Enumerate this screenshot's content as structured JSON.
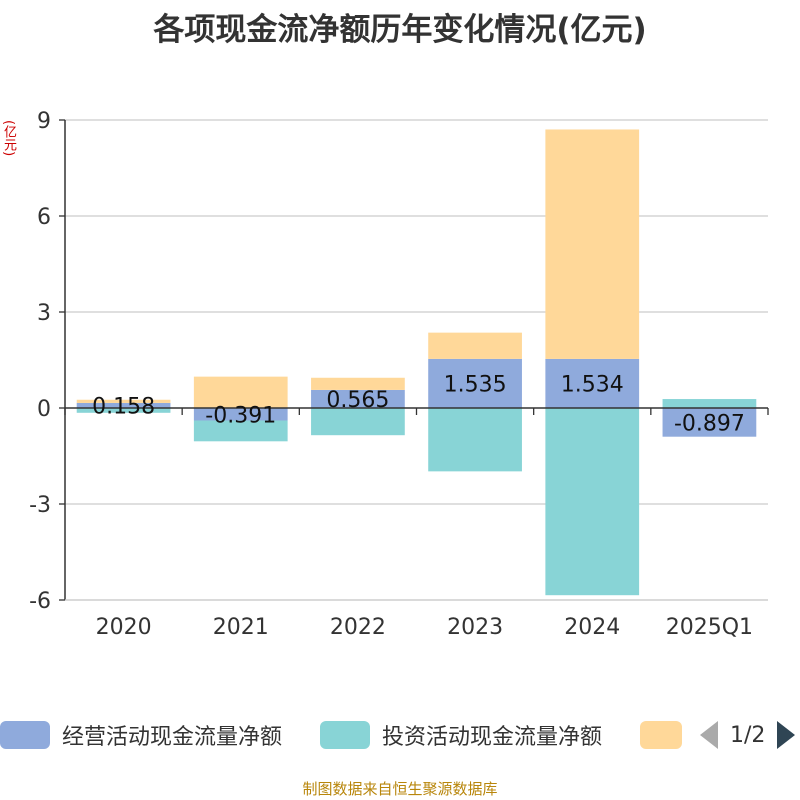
{
  "title": "各项现金流净额历年变化情况(亿元)",
  "unit_label": "(亿元)",
  "source": "制图数据来自恒生聚源数据库",
  "legend": {
    "items": [
      "经营活动现金流量净额",
      "投资活动现金流量净额",
      ""
    ],
    "page": "1/2"
  },
  "chart_data": {
    "type": "bar",
    "stacked": true,
    "categories": [
      "2020",
      "2021",
      "2022",
      "2023",
      "2024",
      "2025Q1"
    ],
    "ylim": [
      -6,
      9
    ],
    "yticks": [
      -6,
      -3,
      0,
      3,
      6,
      9
    ],
    "grid": true,
    "legend_position": "bottom",
    "series": [
      {
        "name": "经营活动现金流量净额",
        "color": "#8faadc",
        "values": [
          0.158,
          -0.391,
          0.565,
          1.535,
          1.534,
          -0.897
        ],
        "labels": [
          "0.158",
          "-0.391",
          "0.565",
          "1.535",
          "1.534",
          "-0.897"
        ]
      },
      {
        "name": "投资活动现金流量净额",
        "color": "#88d4d6",
        "values": [
          -0.15,
          -0.65,
          -0.85,
          -1.98,
          -5.85,
          0.28
        ]
      },
      {
        "name": "",
        "color": "#ffd899",
        "values": [
          0.1,
          0.98,
          0.38,
          0.82,
          7.17,
          0.0
        ]
      }
    ]
  }
}
